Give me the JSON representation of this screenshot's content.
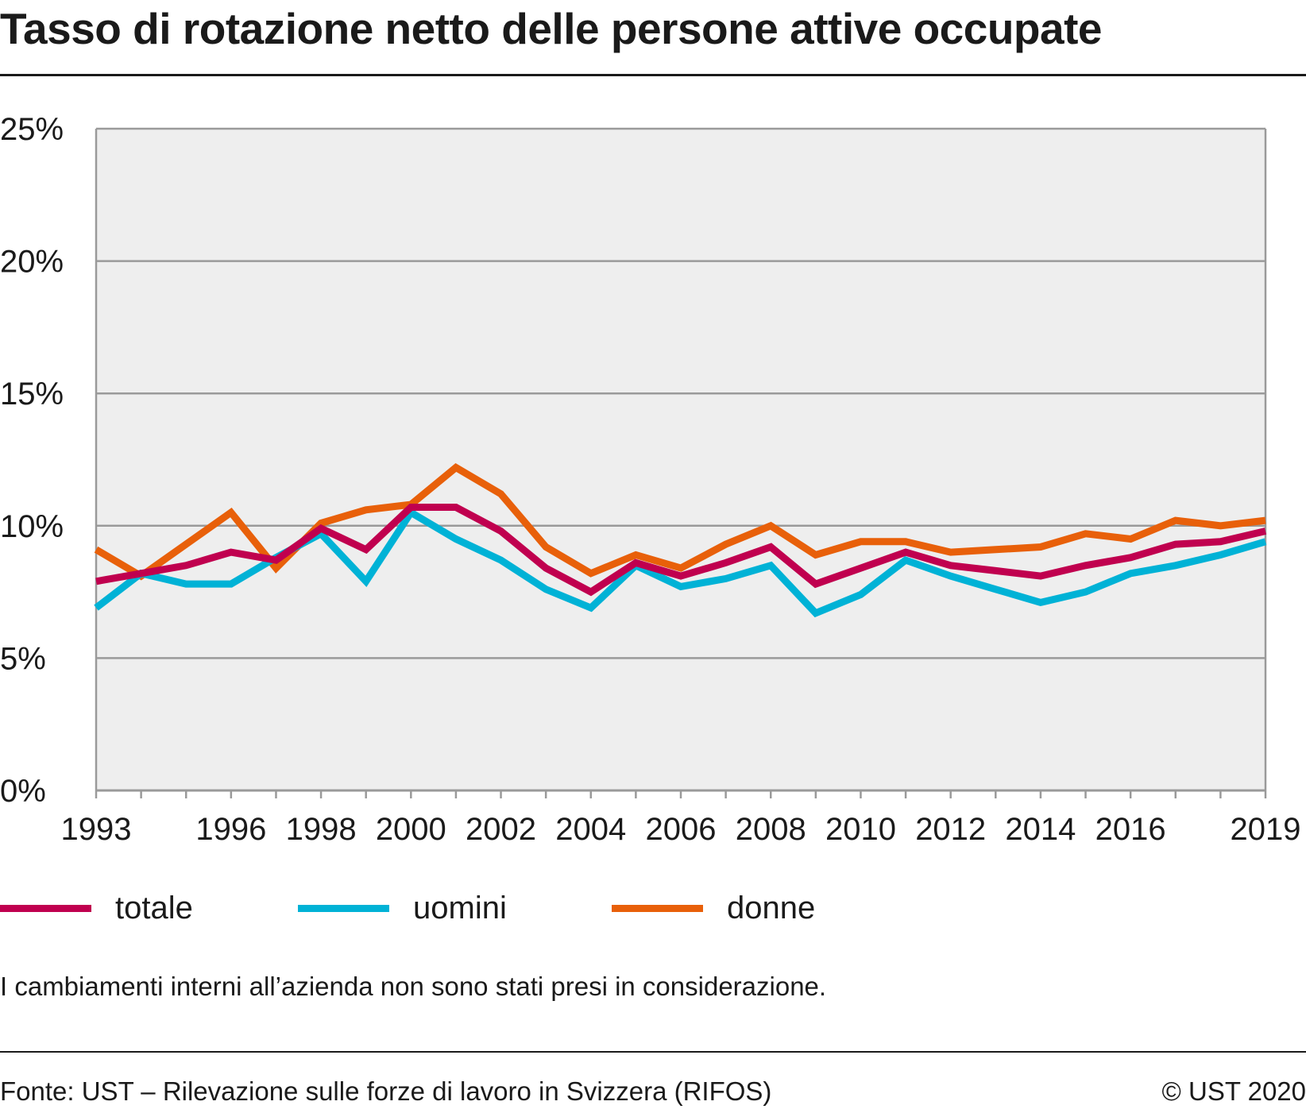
{
  "title": "Tasso di rotazione netto delle persone attive occupate",
  "note": "I cambiamenti interni all’azienda non sono stati presi in considerazione.",
  "source": "Fonte: UST – Rilevazione sulle forze di lavoro in Svizzera (RIFOS)",
  "copyright": "© UST 2020",
  "chart_data": {
    "type": "line",
    "title": "",
    "xlabel": "",
    "ylabel": "",
    "x": [
      1993,
      1994,
      1995,
      1996,
      1997,
      1998,
      1999,
      2000,
      2001,
      2002,
      2003,
      2004,
      2005,
      2006,
      2007,
      2008,
      2009,
      2010,
      2011,
      2012,
      2013,
      2014,
      2015,
      2016,
      2017,
      2018,
      2019
    ],
    "xlim": [
      1993,
      2019
    ],
    "x_tick_labels": [
      {
        "value": 1993,
        "label": "1993"
      },
      {
        "value": 1996,
        "label": "1996"
      },
      {
        "value": 1998,
        "label": "1998"
      },
      {
        "value": 2000,
        "label": "2000"
      },
      {
        "value": 2002,
        "label": "2002"
      },
      {
        "value": 2004,
        "label": "2004"
      },
      {
        "value": 2006,
        "label": "2006"
      },
      {
        "value": 2008,
        "label": "2008"
      },
      {
        "value": 2010,
        "label": "2010"
      },
      {
        "value": 2012,
        "label": "2012"
      },
      {
        "value": 2014,
        "label": "2014"
      },
      {
        "value": 2016,
        "label": "2016"
      },
      {
        "value": 2019,
        "label": "2019"
      }
    ],
    "x_minor_ticks": [
      1993,
      1994,
      1995,
      1996,
      1997,
      1998,
      1999,
      2000,
      2001,
      2002,
      2003,
      2004,
      2005,
      2006,
      2007,
      2008,
      2009,
      2010,
      2011,
      2012,
      2013,
      2014,
      2015,
      2016,
      2017,
      2018,
      2019
    ],
    "ylim": [
      0,
      25
    ],
    "y_ticks": [
      {
        "value": 0,
        "label": "0%"
      },
      {
        "value": 5,
        "label": "5%"
      },
      {
        "value": 10,
        "label": "10%"
      },
      {
        "value": 15,
        "label": "15%"
      },
      {
        "value": 20,
        "label": "20%"
      },
      {
        "value": 25,
        "label": "25%"
      }
    ],
    "grid": "horizontal",
    "legend_position": "bottom",
    "plot_background": "#eeeeee",
    "series": [
      {
        "name": "totale",
        "color": "#c0004f",
        "values": [
          7.9,
          8.2,
          8.5,
          9.0,
          8.7,
          9.9,
          9.1,
          10.7,
          10.7,
          9.8,
          8.4,
          7.5,
          8.6,
          8.1,
          8.6,
          9.2,
          7.8,
          8.4,
          9.0,
          8.5,
          8.3,
          8.1,
          8.5,
          8.8,
          9.3,
          9.4,
          9.8
        ]
      },
      {
        "name": "uomini",
        "color": "#00b2d6",
        "values": [
          6.9,
          8.2,
          7.8,
          7.8,
          8.8,
          9.7,
          7.9,
          10.5,
          9.5,
          8.7,
          7.6,
          6.9,
          8.5,
          7.7,
          8.0,
          8.5,
          6.7,
          7.4,
          8.7,
          8.1,
          7.6,
          7.1,
          7.5,
          8.2,
          8.5,
          8.9,
          9.4
        ]
      },
      {
        "name": "donne",
        "color": "#e8600a",
        "values": [
          9.1,
          8.1,
          9.3,
          10.5,
          8.4,
          10.1,
          10.6,
          10.8,
          12.2,
          11.2,
          9.2,
          8.2,
          8.9,
          8.4,
          9.3,
          10.0,
          8.9,
          9.4,
          9.4,
          9.0,
          9.1,
          9.2,
          9.7,
          9.5,
          10.2,
          10.0,
          10.2
        ]
      }
    ]
  }
}
